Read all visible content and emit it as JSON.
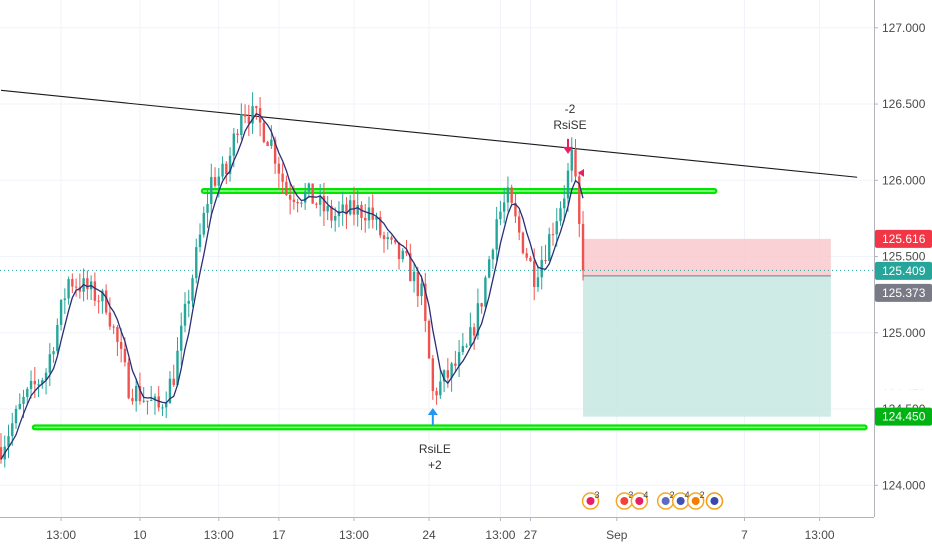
{
  "chart_data": {
    "type": "candlestick",
    "y_axis": {
      "ylim": [
        123.6,
        127.15
      ],
      "ticks": [
        "124.000",
        "124.500",
        "125.000",
        "125.500",
        "126.000",
        "126.500",
        "127.000"
      ],
      "tick_values": [
        124.0,
        124.5,
        125.0,
        125.5,
        126.0,
        126.5,
        127.0
      ]
    },
    "x_axis": {
      "ticks": [
        "13:00",
        "10",
        "13:00",
        "17",
        "13:00",
        "24",
        "13:00",
        "27",
        "Sep",
        "7",
        "13:00"
      ],
      "tick_index": [
        16,
        37,
        58,
        74,
        94,
        114,
        133,
        141,
        164,
        198,
        218
      ]
    },
    "price_tags": [
      {
        "label": "125.616",
        "value": 125.616,
        "color": "#f23645"
      },
      {
        "label": "125.409",
        "value": 125.409,
        "color": "#26a69a"
      },
      {
        "label": "125.373",
        "value": 125.373,
        "color": "#787b86"
      },
      {
        "label": "124.450",
        "value": 124.45,
        "color": "#00b312"
      }
    ],
    "hidden_tag_partial": "124.450",
    "trendline": {
      "from": {
        "index": 0,
        "value": 126.59
      },
      "to": {
        "index": 228,
        "value": 126.02
      },
      "color": "#1a1a1a"
    },
    "support_lines": [
      {
        "from_index": 54,
        "to_index": 190,
        "value": 125.93,
        "color": "#00e600"
      },
      {
        "from_index": 9,
        "to_index": 230,
        "value": 124.38,
        "color": "#00e600"
      }
    ],
    "position": {
      "type": "short",
      "entry": 125.373,
      "stop": 125.616,
      "target": 124.45,
      "from_index": 155,
      "to_index": 221,
      "stop_color": "#f9c9cc",
      "target_color": "#c7e8e2"
    },
    "signals": [
      {
        "label": "RsiSE",
        "qty": "-2",
        "index": 151,
        "value": 126.18,
        "direction": "down",
        "color": "#e91e63"
      },
      {
        "label": "RsiLE",
        "qty": "+2",
        "index": 115,
        "value": 124.5,
        "direction": "up",
        "color": "#2196f3"
      }
    ],
    "series_colors": {
      "up": "#26a69a",
      "down": "#ef5350",
      "ma": "#2a2e76"
    },
    "last_price": 125.409,
    "events": [
      {
        "label": "3",
        "index": 157
      },
      {
        "label": "3",
        "index": 166
      },
      {
        "label": "4",
        "index": 170
      },
      {
        "label": "2",
        "index": 177
      },
      {
        "label": "4",
        "index": 181
      },
      {
        "label": "2",
        "index": 185
      },
      {
        "label": "",
        "index": 190
      }
    ],
    "candle_count": 156,
    "candle_anchors": [
      [
        0,
        124.25
      ],
      [
        6,
        124.55
      ],
      [
        12,
        124.75
      ],
      [
        18,
        125.35
      ],
      [
        22,
        125.3
      ],
      [
        28,
        125.2
      ],
      [
        34,
        124.65
      ],
      [
        42,
        124.5
      ],
      [
        46,
        124.72
      ],
      [
        50,
        125.25
      ],
      [
        56,
        126.0
      ],
      [
        60,
        126.05
      ],
      [
        64,
        126.48
      ],
      [
        68,
        126.4
      ],
      [
        72,
        126.25
      ],
      [
        76,
        125.92
      ],
      [
        82,
        125.9
      ],
      [
        88,
        125.76
      ],
      [
        94,
        125.8
      ],
      [
        98,
        125.8
      ],
      [
        102,
        125.6
      ],
      [
        108,
        125.45
      ],
      [
        112,
        125.25
      ],
      [
        115,
        124.6
      ],
      [
        120,
        124.75
      ],
      [
        124,
        124.88
      ],
      [
        128,
        125.22
      ],
      [
        132,
        125.75
      ],
      [
        135,
        125.88
      ],
      [
        138,
        125.65
      ],
      [
        142,
        125.38
      ],
      [
        145,
        125.55
      ],
      [
        150,
        125.92
      ],
      [
        152,
        126.15
      ],
      [
        153,
        125.95
      ],
      [
        155,
        125.41
      ]
    ]
  }
}
